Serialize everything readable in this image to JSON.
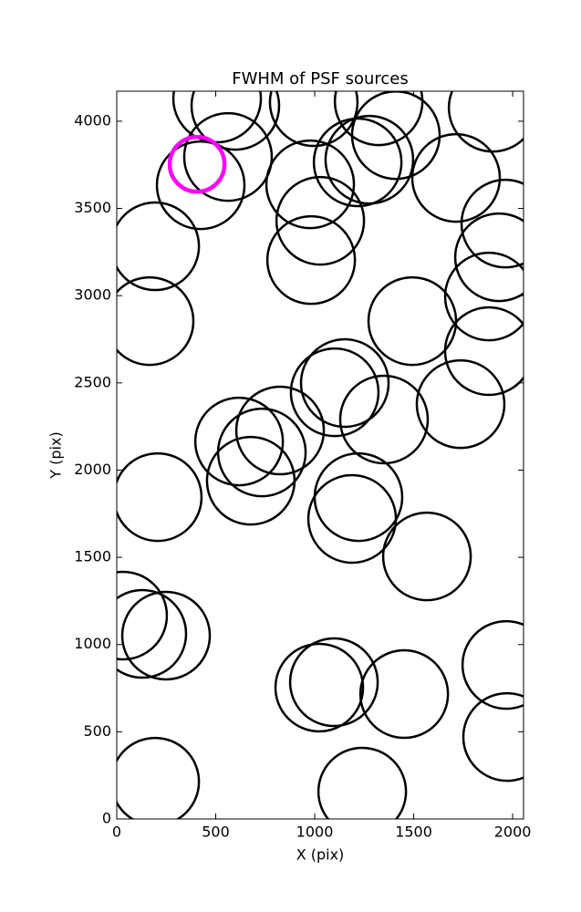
{
  "chart_data": {
    "type": "scatter",
    "title": "FWHM of PSF sources",
    "x_label": "X (pix)",
    "y_label": "Y (pix)",
    "xlim": [
      0,
      2055
    ],
    "ylim": [
      0,
      4172
    ],
    "xticks": [
      0,
      500,
      1000,
      1500,
      2000
    ],
    "yticks": [
      0,
      500,
      1000,
      1500,
      2000,
      2500,
      3000,
      3500,
      4000
    ],
    "series": [
      {
        "color": "#000000",
        "x": [
          194,
          1240,
          1972,
          1968,
          1452,
          1097,
          1023,
          249,
          129,
          32,
          1567,
          1189,
          1221,
          207,
          677,
          733,
          618,
          825,
          1350,
          1101,
          1152,
          1737,
          1880,
          1493,
          1880,
          166,
          194,
          982,
          1028,
          977,
          424,
          562,
          507,
          599,
          995,
          1323,
          1276,
          1410,
          1714,
          1963,
          1931,
          1899,
          1217
        ],
        "values": [
          214,
          157,
          470,
          883,
          716,
          784,
          753,
          1051,
          1061,
          1166,
          1505,
          1720,
          1845,
          1845,
          1939,
          2101,
          2164,
          2227,
          2290,
          2446,
          2499,
          2378,
          2682,
          2854,
          2995,
          2854,
          3283,
          3204,
          3429,
          3638,
          3633,
          3795,
          4130,
          4088,
          4109,
          4114,
          3779,
          3920,
          3675,
          3413,
          3220,
          4077,
          3764
        ]
      },
      {
        "color": "#ff00ff",
        "x": [
          406
        ],
        "values": [
          3753
        ]
      }
    ]
  }
}
